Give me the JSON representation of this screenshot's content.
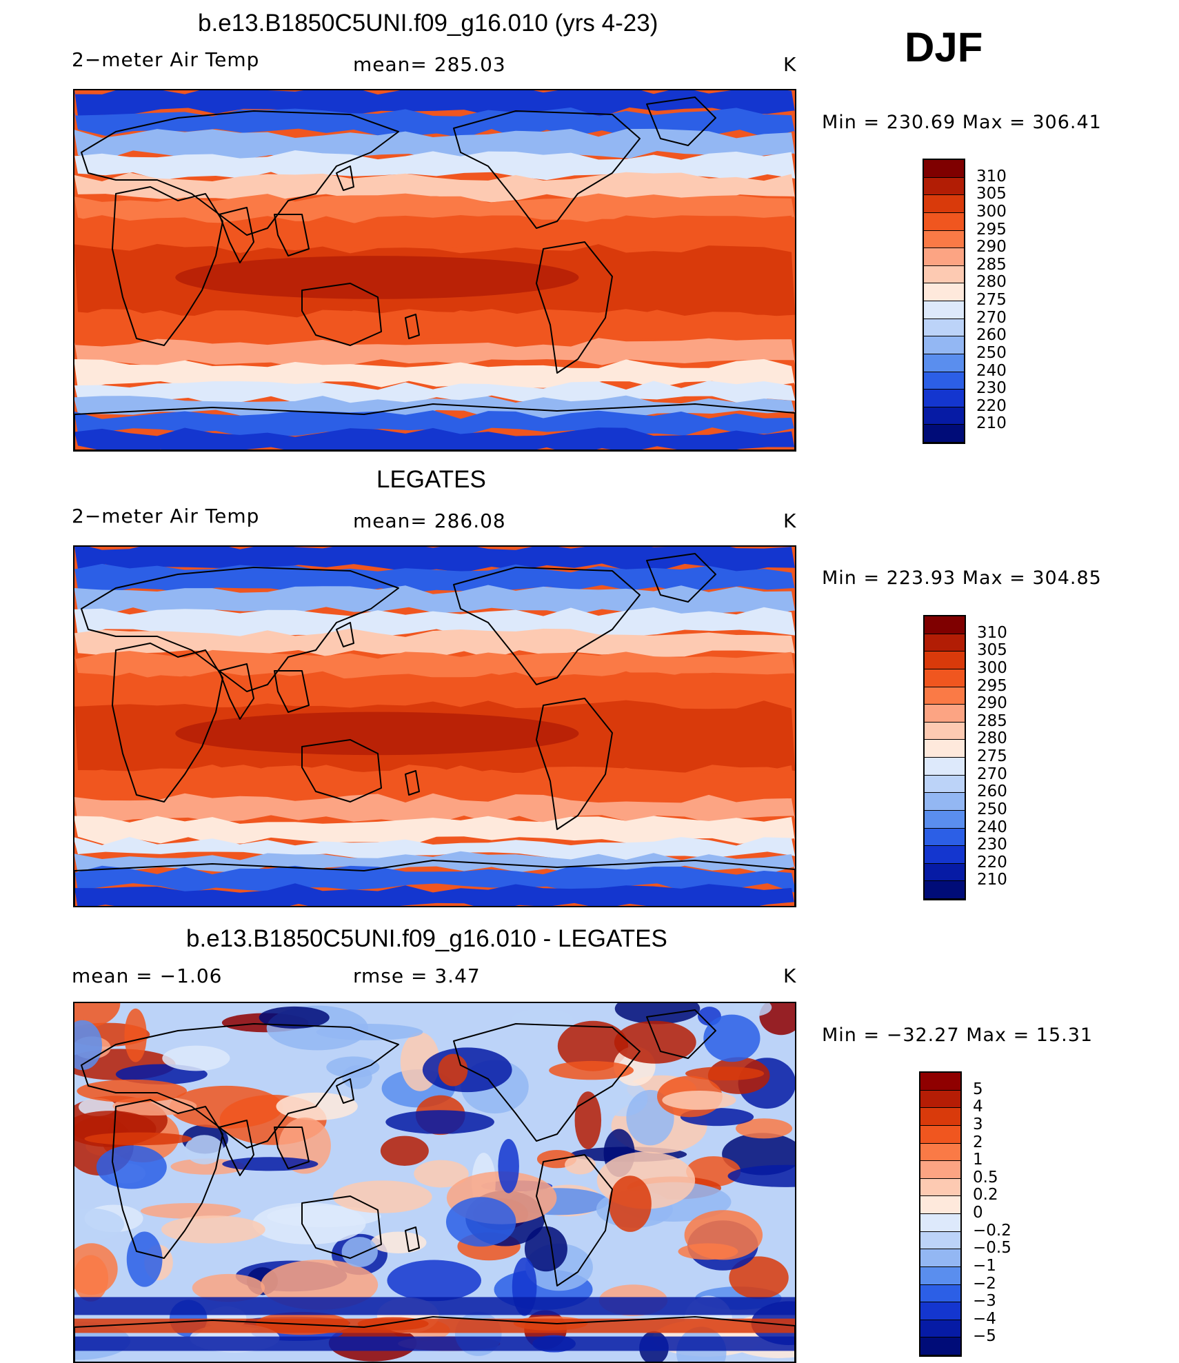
{
  "season": "DJF",
  "units": "K",
  "panels": [
    {
      "title": "b.e13.B1850C5UNI.f09_g16.010 (yrs 4-23)",
      "left_label": "2−meter Air Temp",
      "center_label": "mean=  285.03",
      "right_label": "K",
      "minmax": "Min  =  230.69  Max  =  306.41",
      "colorbar": [
        "310",
        "305",
        "300",
        "295",
        "290",
        "285",
        "280",
        "275",
        "270",
        "260",
        "250",
        "240",
        "230",
        "220",
        "210"
      ],
      "palette": "abs",
      "bias": 0
    },
    {
      "title": "LEGATES",
      "left_label": "2−meter Air Temp",
      "center_label": "mean=  286.08",
      "right_label": "K",
      "minmax": "Min  =  223.93  Max  =  304.85",
      "colorbar": [
        "310",
        "305",
        "300",
        "295",
        "290",
        "285",
        "280",
        "275",
        "270",
        "260",
        "250",
        "240",
        "230",
        "220",
        "210"
      ],
      "palette": "abs",
      "bias": 1
    },
    {
      "title": "b.e13.B1850C5UNI.f09_g16.010 - LEGATES",
      "left_label": "mean  =     −1.06",
      "center_label": "rmse  =     3.47",
      "right_label": "K",
      "minmax": "Min  =  −32.27  Max  =    15.31",
      "colorbar": [
        "5",
        "4",
        "3",
        "2",
        "1",
        "0.5",
        "0.2",
        "0",
        "−0.2",
        "−0.5",
        "−1",
        "−2",
        "−3",
        "−4",
        "−5"
      ],
      "palette": "diff",
      "bias": 2
    }
  ],
  "colors": {
    "abs": [
      "#7f0000",
      "#b21d05",
      "#d93a0b",
      "#f0561f",
      "#fa7a46",
      "#fca483",
      "#fdcab2",
      "#fee9dc",
      "#dde9fb",
      "#bcd3f8",
      "#93b7f3",
      "#5a8eee",
      "#2c5fe6",
      "#1436cf",
      "#061ba5",
      "#000c78"
    ],
    "diff": [
      "#8f0000",
      "#b51d05",
      "#d93a0b",
      "#f0561f",
      "#fa7a46",
      "#fca483",
      "#fdcab2",
      "#fee9dc",
      "#dde9fb",
      "#bcd3f8",
      "#93b7f3",
      "#5a8eee",
      "#2c5fe6",
      "#1436cf",
      "#061ba5",
      "#000c78"
    ]
  }
}
